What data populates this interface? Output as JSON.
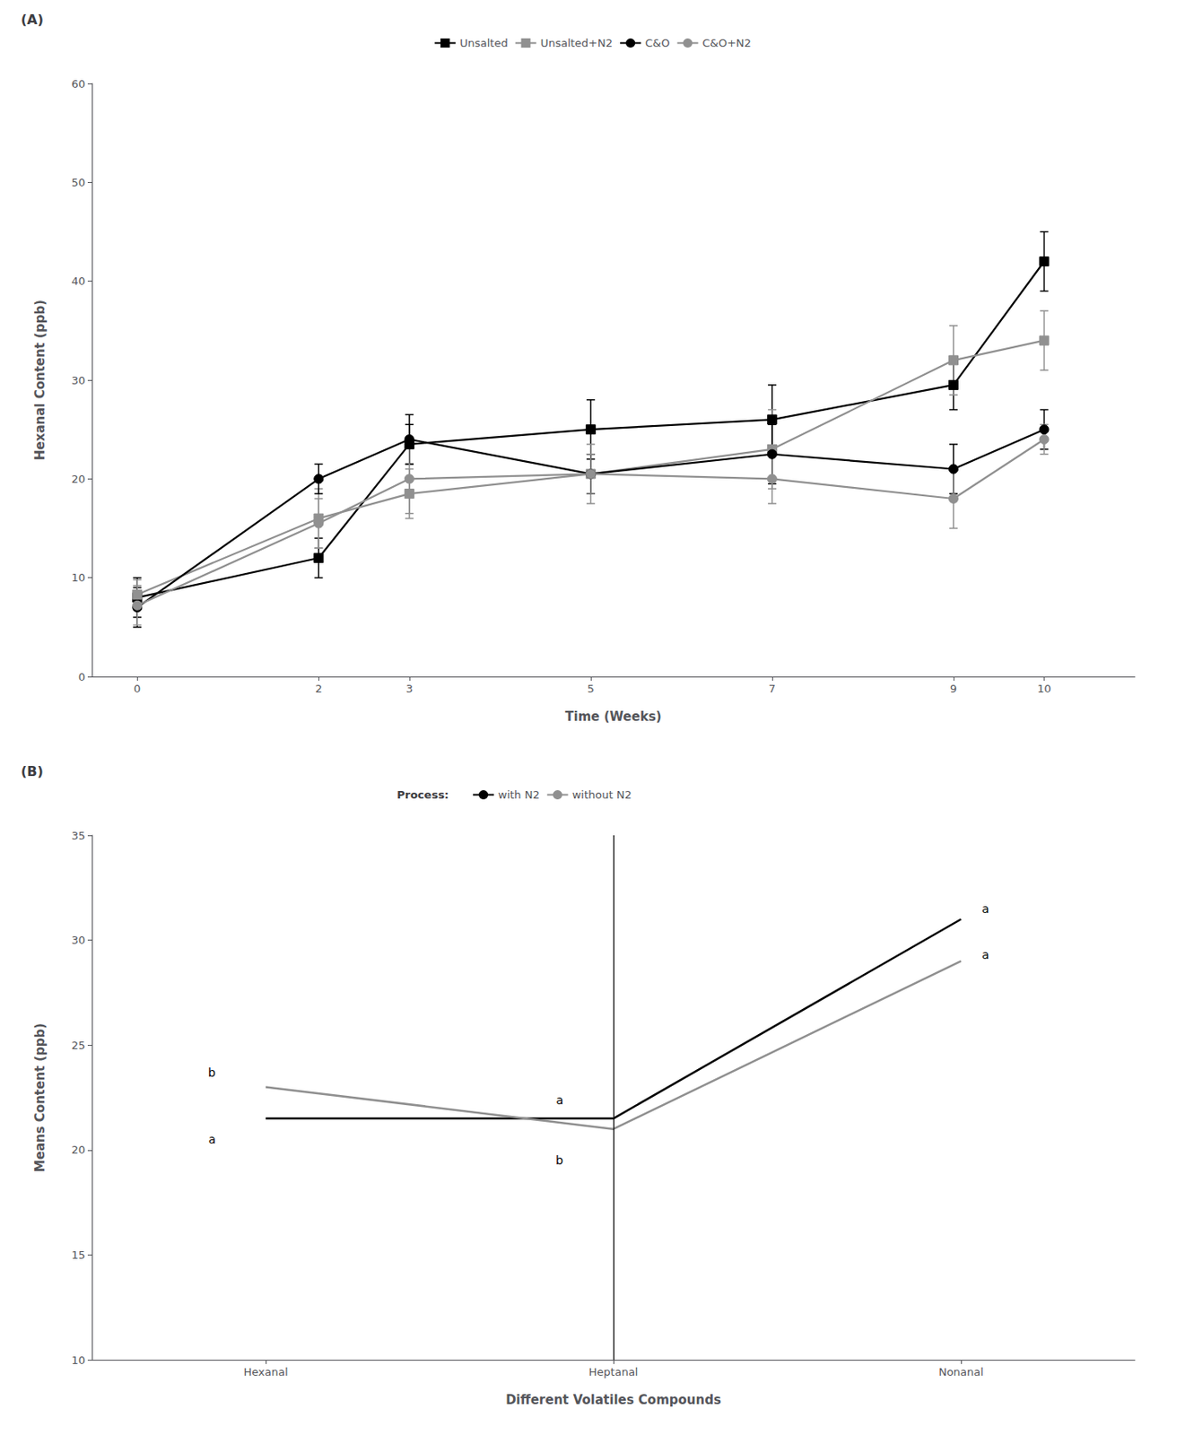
{
  "chart_data": [
    {
      "type": "line",
      "title": "(A)",
      "x_label": "Time (Weeks)",
      "y_label": "Hexanal Content (ppb)",
      "x": [
        0,
        2,
        3,
        5,
        7,
        9,
        10
      ],
      "xlim": [
        -0.5,
        11.0
      ],
      "xticks": [
        0,
        2,
        3,
        5,
        7,
        9,
        10
      ],
      "ylim": [
        0,
        60
      ],
      "yticks": [
        0,
        10,
        20,
        30,
        40,
        50,
        60
      ],
      "grid": false,
      "legend": "top",
      "series": [
        {
          "name": "Unsalted",
          "color": "#000000",
          "marker": "square",
          "values": [
            8.0,
            12.0,
            23.5,
            25.0,
            26.0,
            29.5,
            42.0
          ],
          "yerr": [
            2.0,
            2.0,
            2.0,
            3.0,
            3.5,
            2.5,
            3.0
          ]
        },
        {
          "name": "Unsalted+N2",
          "color": "#909090",
          "marker": "square",
          "values": [
            8.3,
            16.0,
            18.5,
            20.5,
            23.0,
            32.0,
            34.0
          ],
          "yerr": [
            1.5,
            3.0,
            2.5,
            3.0,
            4.0,
            3.5,
            3.0
          ]
        },
        {
          "name": "C&O",
          "color": "#000000",
          "marker": "circle",
          "values": [
            7.0,
            20.0,
            24.0,
            20.5,
            22.5,
            21.0,
            25.0
          ],
          "yerr": [
            2.0,
            1.5,
            2.5,
            2.0,
            3.0,
            2.5,
            2.0
          ]
        },
        {
          "name": "C&O+N2",
          "color": "#909090",
          "marker": "circle",
          "values": [
            7.2,
            15.5,
            20.0,
            20.5,
            20.0,
            18.0,
            24.0
          ],
          "yerr": [
            2.0,
            2.5,
            3.5,
            2.0,
            2.5,
            3.0,
            1.5
          ]
        }
      ]
    },
    {
      "type": "line",
      "title": "(B)",
      "x_label": "Different Volatiles Compounds",
      "y_label": "Means Content (ppb)",
      "categories": [
        "Hexanal",
        "Heptanal",
        "Nonanal"
      ],
      "ylim": [
        10,
        35
      ],
      "yticks": [
        10,
        15,
        20,
        25,
        30,
        35
      ],
      "grid": false,
      "legend": "top",
      "legend_title": "Process:",
      "vertical_line": "Heptanal",
      "series": [
        {
          "name": "with N2",
          "color": "#000000",
          "values": [
            21.5,
            21.5,
            31.0
          ]
        },
        {
          "name": "without N2",
          "color": "#909090",
          "values": [
            23.0,
            21.0,
            29.0
          ]
        }
      ],
      "annotations": [
        {
          "text": "b",
          "category": "Hexanal",
          "y": 23.7
        },
        {
          "text": "a",
          "category": "Hexanal",
          "y": 20.5
        },
        {
          "text": "a",
          "category": "Heptanal",
          "y": 22.4
        },
        {
          "text": "b",
          "category": "Heptanal",
          "y": 19.5
        },
        {
          "text": "a",
          "category": "Nonanal",
          "y": 31.5
        },
        {
          "text": "a",
          "category": "Nonanal",
          "y": 29.3
        }
      ]
    }
  ]
}
